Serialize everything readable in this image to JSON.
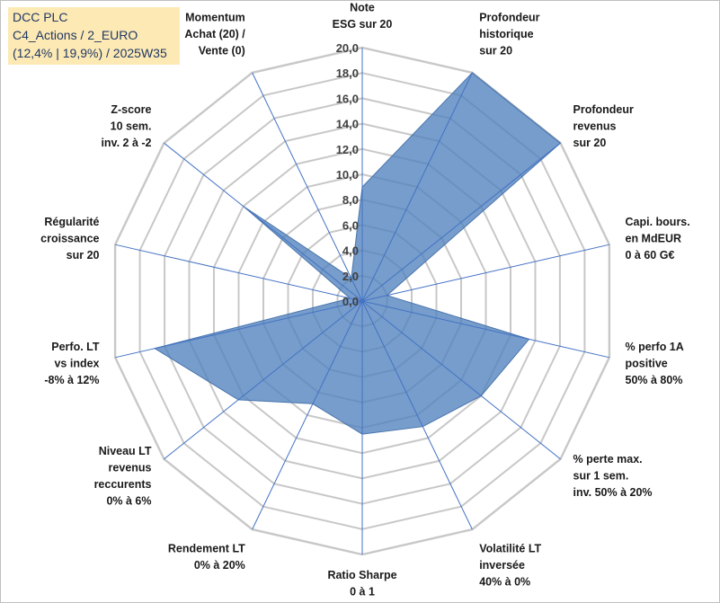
{
  "title": {
    "line1": "DCC PLC",
    "line2": "C4_Actions / 2_EURO",
    "line3": "(12,4% | 19,9%) / 2025W35"
  },
  "chart_data": {
    "type": "radar",
    "rmin": 0,
    "rmax": 20,
    "ticks": [
      "0,0",
      "2,0",
      "4,0",
      "6,0",
      "8,0",
      "10,0",
      "12,0",
      "14,0",
      "16,0",
      "18,0",
      "20,0"
    ],
    "tick_values": [
      0,
      2,
      4,
      6,
      8,
      10,
      12,
      14,
      16,
      18,
      20
    ],
    "colors": {
      "fill": "#4f81bd",
      "spokes": "#4472c4",
      "grid": "#c8c8c8"
    },
    "axes": [
      {
        "lines": [
          "Note",
          "ESG sur 20"
        ],
        "value": 9
      },
      {
        "lines": [
          "Profondeur",
          "historique",
          "sur 20"
        ],
        "value": 20
      },
      {
        "lines": [
          "Profondeur",
          "revenus",
          "sur 20"
        ],
        "value": 20
      },
      {
        "lines": [
          "Capi. bours.",
          "en MdEUR",
          "0 à 60 G€"
        ],
        "value": 2
      },
      {
        "lines": [
          "% perfo 1A",
          "positive",
          "50% à 80%"
        ],
        "value": 13.5
      },
      {
        "lines": [
          "% perte max.",
          "sur 1 sem.",
          "inv. 50% à 20%"
        ],
        "value": 12
      },
      {
        "lines": [
          "Volatilité LT",
          "inversée",
          "40% à 0%"
        ],
        "value": 11
      },
      {
        "lines": [
          "Ratio Sharpe",
          "0 à 1"
        ],
        "value": 10.5
      },
      {
        "lines": [
          "Rendement LT",
          "0% à 20%"
        ],
        "value": 9
      },
      {
        "lines": [
          "Niveau LT",
          "revenus",
          "reccurents",
          "0% à 6%"
        ],
        "value": 12.5
      },
      {
        "lines": [
          "Perfo. LT",
          "vs index",
          "-8% à 12%"
        ],
        "value": 16.8
      },
      {
        "lines": [
          "Régularité",
          "croissance",
          "sur 20"
        ],
        "value": 1
      },
      {
        "lines": [
          "Z-score",
          "10 sem.",
          "inv. 2 à -2"
        ],
        "value": 12
      },
      {
        "lines": [
          "Momentum",
          "Achat (20) /",
          "Vente (0)"
        ],
        "value": 2
      }
    ]
  }
}
